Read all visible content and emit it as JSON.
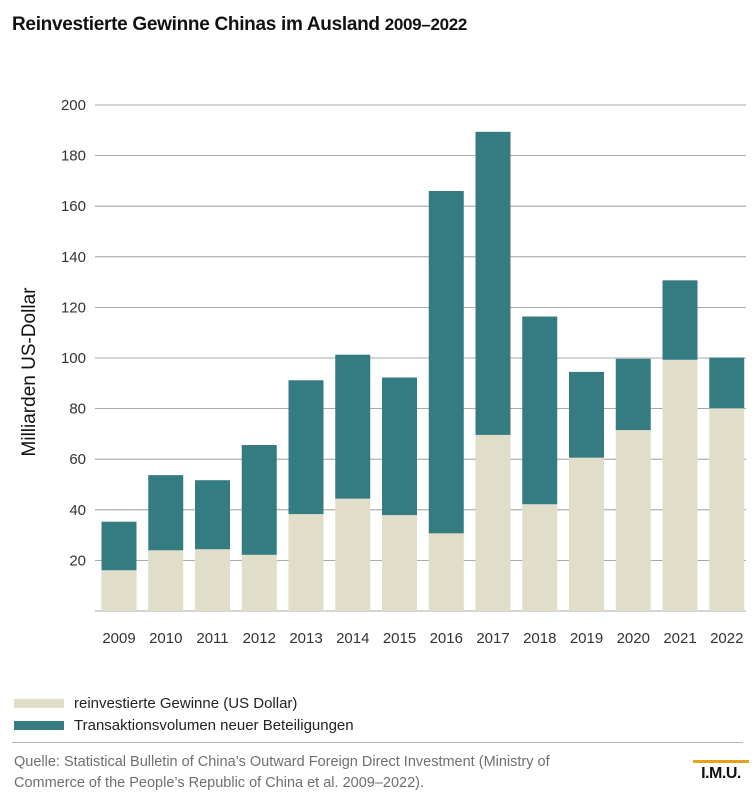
{
  "title": "Reinvestierte Gewinne Chinas im Ausland",
  "title_years": "2009–2022",
  "chart_data": {
    "type": "bar",
    "stacked": true,
    "categories": [
      "2009",
      "2010",
      "2011",
      "2012",
      "2013",
      "2014",
      "2015",
      "2016",
      "2017",
      "2018",
      "2019",
      "2020",
      "2021",
      "2022"
    ],
    "series": [
      {
        "name": "reinvestierte Gewinne (US Dollar)",
        "color": "#e0ddc8",
        "values": [
          16.1,
          24.0,
          24.4,
          22.2,
          38.3,
          44.4,
          37.9,
          30.7,
          69.6,
          42.2,
          60.6,
          71.5,
          99.3,
          80.1
        ]
      },
      {
        "name": "Transaktionsvolumen neuer Beteiligungen",
        "color": "#357b82",
        "values": [
          19.2,
          29.7,
          27.3,
          43.4,
          52.9,
          56.9,
          54.4,
          135.3,
          119.8,
          74.2,
          33.9,
          28.2,
          31.4,
          20.1
        ]
      }
    ],
    "ylabel": "Milliarden US-Dollar",
    "ylim": [
      0,
      200
    ],
    "yticks": [
      20,
      40,
      60,
      80,
      100,
      120,
      140,
      160,
      180,
      200
    ],
    "grid": true,
    "legend_position": "bottom-left"
  },
  "source_text": "Quelle: Statistical Bulletin of China’s Outward Foreign Direct Investment (Ministry of Commerce of the People’s Republic of China et al. 2009–2022).",
  "logo_text": "I.M.U."
}
